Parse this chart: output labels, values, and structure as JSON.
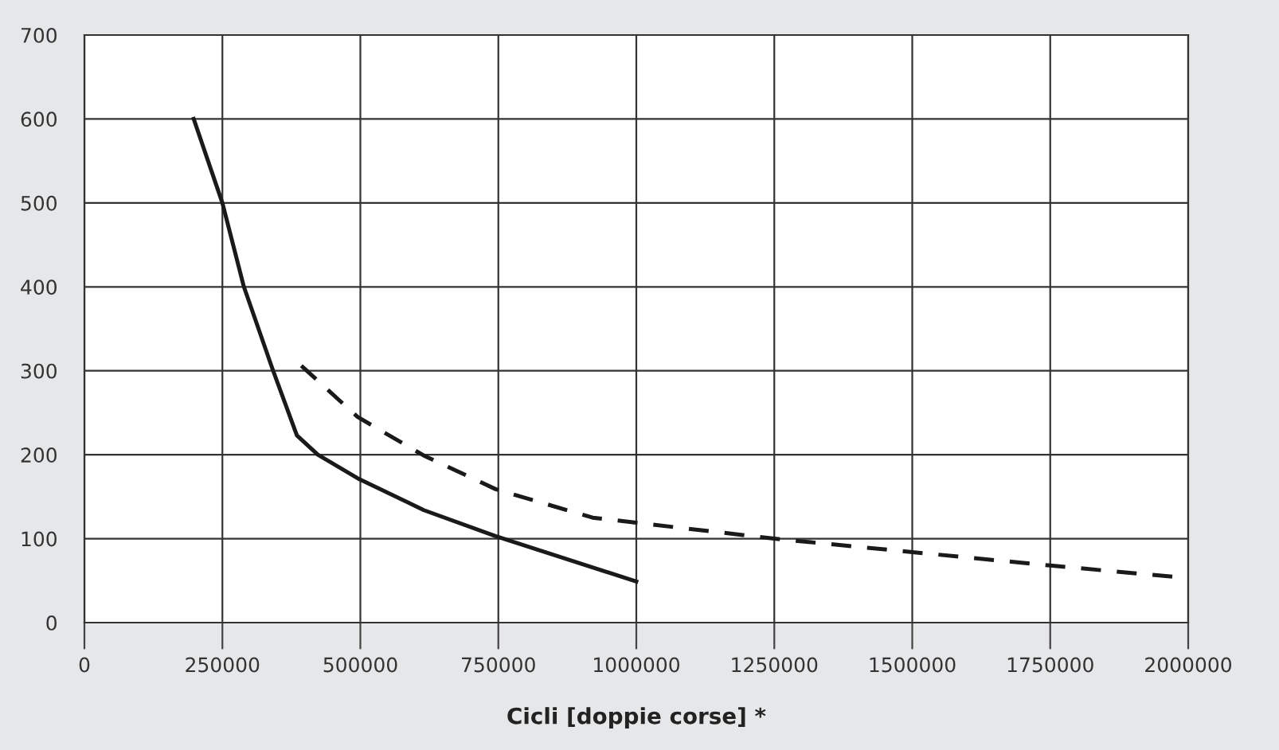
{
  "chart_data": {
    "type": "line",
    "xlabel": "Cicli [doppie corse] *",
    "series": [
      {
        "color": "#1a1a1a",
        "line_style": "solid",
        "x": [
          198000,
          250000,
          289000,
          342000,
          385000,
          423000,
          495000,
          615000,
          745000,
          1000000
        ],
        "values": [
          600,
          500,
          400,
          300,
          223,
          200,
          172,
          134,
          103,
          49
        ]
      },
      {
        "color": "#1a1a1a",
        "line_style": "dashed",
        "x": [
          393000,
          495000,
          615000,
          745000,
          921000,
          1000000,
          1250000,
          1500000,
          1750000,
          2000000
        ],
        "values": [
          306,
          245,
          199,
          159,
          125,
          119,
          100,
          84,
          68,
          53
        ]
      }
    ],
    "xlim": [
      0,
      2000000
    ],
    "xticks": [
      0,
      250000,
      500000,
      750000,
      1000000,
      1250000,
      1500000,
      1750000,
      2000000
    ],
    "ylim": [
      0,
      700
    ],
    "yticks": [
      0,
      100,
      200,
      300,
      400,
      500,
      600,
      700
    ],
    "grid": true,
    "legend": false
  }
}
